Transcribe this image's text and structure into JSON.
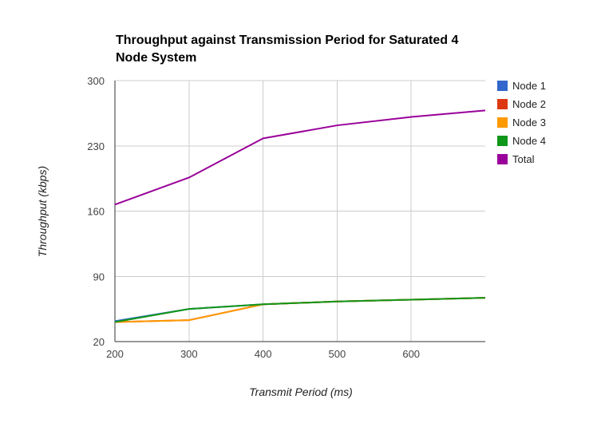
{
  "chart_data": {
    "type": "line",
    "title": "Throughput against Transmission Period for Saturated 4 Node System",
    "title_lines": [
      "Throughput against Transmission Period for Saturated 4",
      "Node System"
    ],
    "xlabel": "Transmit Period (ms)",
    "ylabel": "Throughput (kbps)",
    "x": [
      200,
      300,
      400,
      500,
      600,
      700
    ],
    "x_ticks": [
      200,
      300,
      400,
      500,
      600
    ],
    "xlim": [
      200,
      700
    ],
    "y_ticks": [
      20,
      90,
      160,
      230,
      300
    ],
    "ylim": [
      20,
      300
    ],
    "grid": true,
    "legend_position": "right",
    "series": [
      {
        "name": "Node 1",
        "color": "#3366cc",
        "values": [
          42,
          55,
          60,
          63,
          65,
          67
        ]
      },
      {
        "name": "Node 2",
        "color": "#dc3912",
        "values": [
          41,
          43,
          60,
          63,
          65,
          67
        ]
      },
      {
        "name": "Node 3",
        "color": "#ff9900",
        "values": [
          41,
          43,
          60,
          63,
          65,
          67
        ]
      },
      {
        "name": "Node 4",
        "color": "#109618",
        "values": [
          41,
          55,
          60,
          63,
          65,
          67
        ]
      },
      {
        "name": "Total",
        "color": "#990099",
        "values": [
          167,
          196,
          238,
          252,
          261,
          268
        ]
      }
    ]
  }
}
